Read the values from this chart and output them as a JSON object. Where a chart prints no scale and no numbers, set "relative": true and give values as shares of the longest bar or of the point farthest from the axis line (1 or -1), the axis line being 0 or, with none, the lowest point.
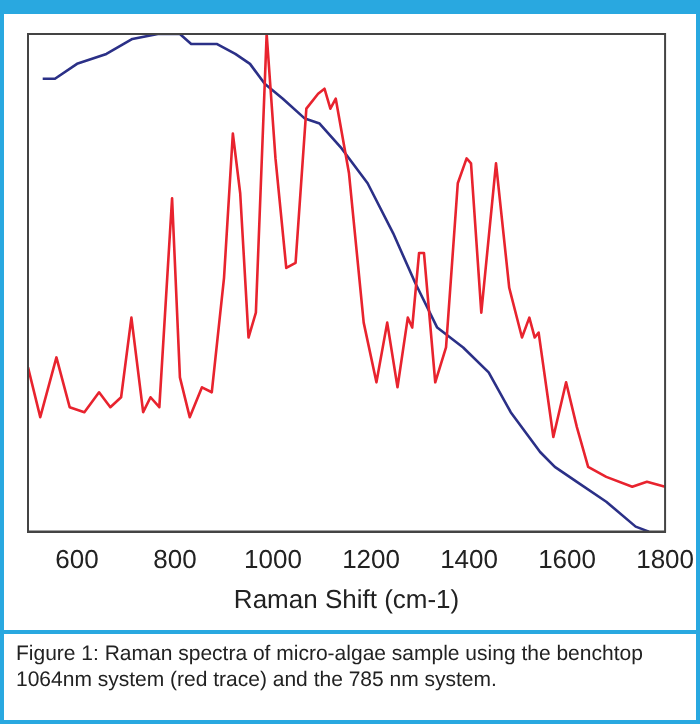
{
  "chart_data": {
    "type": "line",
    "relative": true,
    "xlabel": "Raman Shift (cm-1)",
    "xlim": [
      500,
      1800
    ],
    "xticks": [
      600,
      800,
      1000,
      1200,
      1400,
      1600,
      1800
    ],
    "grid": false,
    "legend": false,
    "marker": "none",
    "line_style": "solid",
    "series": [
      {
        "color": "#e8232e",
        "x": [
          500,
          525,
          558,
          585,
          615,
          645,
          668,
          690,
          711,
          735,
          750,
          768,
          794,
          810,
          830,
          855,
          875,
          900,
          918,
          933,
          950,
          965,
          987,
          1005,
          1027,
          1046,
          1068,
          1092,
          1105,
          1117,
          1128,
          1155,
          1185,
          1211,
          1233,
          1254,
          1275,
          1284,
          1298,
          1308,
          1331,
          1353,
          1377,
          1395,
          1404,
          1425,
          1455,
          1482,
          1508,
          1523,
          1534,
          1542,
          1572,
          1598,
          1620,
          1643,
          1680,
          1733,
          1763,
          1800
        ],
        "values": [
          0.33,
          0.23,
          0.35,
          0.25,
          0.24,
          0.28,
          0.25,
          0.27,
          0.43,
          0.24,
          0.27,
          0.25,
          0.67,
          0.31,
          0.23,
          0.29,
          0.28,
          0.51,
          0.8,
          0.68,
          0.39,
          0.44,
          1.0,
          0.75,
          0.53,
          0.54,
          0.85,
          0.88,
          0.89,
          0.85,
          0.87,
          0.72,
          0.42,
          0.3,
          0.42,
          0.29,
          0.43,
          0.41,
          0.56,
          0.56,
          0.3,
          0.37,
          0.7,
          0.75,
          0.74,
          0.44,
          0.74,
          0.49,
          0.39,
          0.43,
          0.39,
          0.4,
          0.19,
          0.3,
          0.21,
          0.13,
          0.11,
          0.09,
          0.1,
          0.09
        ]
      },
      {
        "color": "#2b3087",
        "x": [
          530,
          555,
          600,
          660,
          713,
          765,
          810,
          833,
          885,
          923,
          953,
          983,
          1020,
          1065,
          1095,
          1140,
          1193,
          1245,
          1290,
          1335,
          1388,
          1440,
          1485,
          1545,
          1575,
          1620,
          1680,
          1740,
          1767
        ],
        "values": [
          0.91,
          0.91,
          0.94,
          0.96,
          0.99,
          1.0,
          1.0,
          0.98,
          0.98,
          0.96,
          0.94,
          0.9,
          0.87,
          0.83,
          0.82,
          0.77,
          0.7,
          0.6,
          0.5,
          0.41,
          0.37,
          0.32,
          0.24,
          0.16,
          0.13,
          0.1,
          0.06,
          0.01,
          0.0
        ]
      }
    ],
    "annotations": [
      "Figure 1: Raman spectra of micro-algae sample using the benchtop 1064nm system (red trace) and the 785 nm system."
    ]
  }
}
